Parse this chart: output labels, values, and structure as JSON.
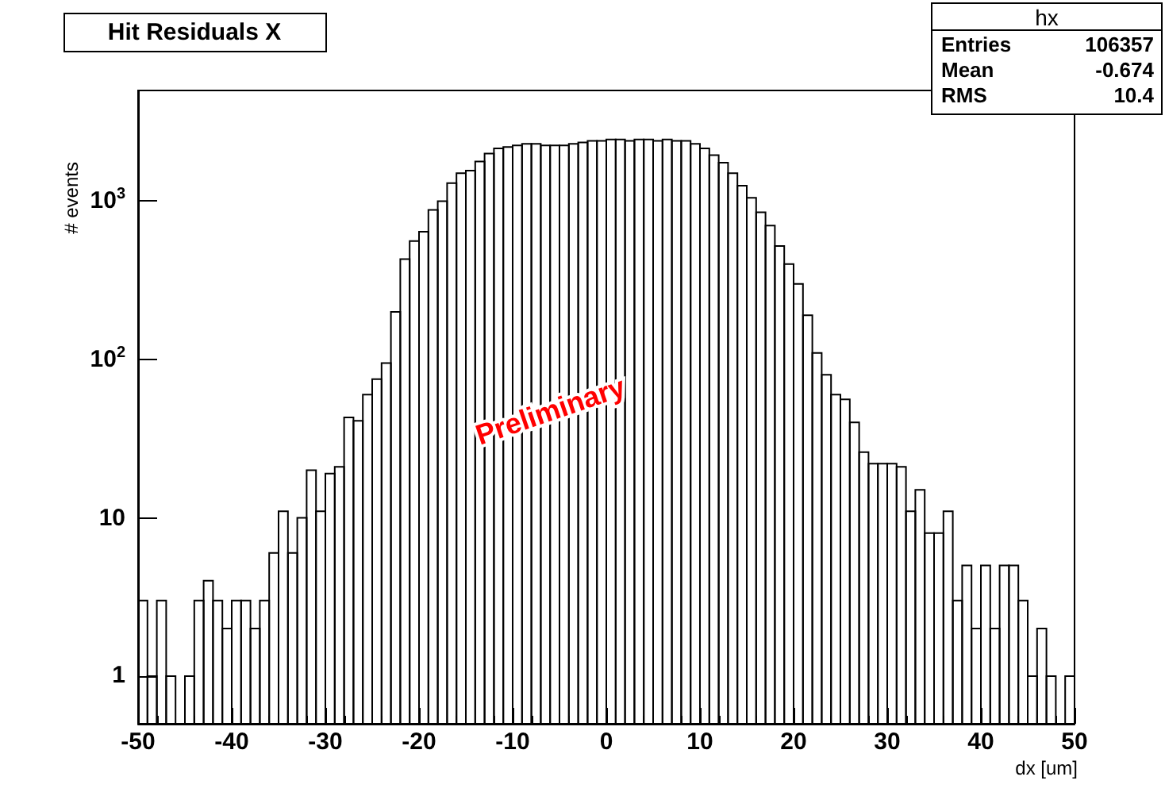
{
  "chart_data": {
    "type": "histogram",
    "title": "Hit Residuals X",
    "xlabel": "dx [um]",
    "ylabel": "# events",
    "annotations": [
      "Preliminary",
      "hx",
      "Entries 106357",
      "Mean -0.674",
      "RMS 10.4"
    ],
    "bins": [
      -50,
      -49,
      -48,
      -47,
      -46,
      -45,
      -44,
      -43,
      -42,
      -41,
      -40,
      -39,
      -38,
      -37,
      -36,
      -35,
      -34,
      -33,
      -32,
      -31,
      -30,
      -29,
      -28,
      -27,
      -26,
      -25,
      -24,
      -23,
      -22,
      -21,
      -20,
      -19,
      -18,
      -17,
      -16,
      -15,
      -14,
      -13,
      -12,
      -11,
      -10,
      -9,
      -8,
      -7,
      -6,
      -5,
      -4,
      -3,
      -2,
      -1,
      0,
      1,
      2,
      3,
      4,
      5,
      6,
      7,
      8,
      9,
      10,
      11,
      12,
      13,
      14,
      15,
      16,
      17,
      18,
      19,
      20,
      21,
      22,
      23,
      24,
      25,
      26,
      27,
      28,
      29,
      30,
      31,
      32,
      33,
      34,
      35,
      36,
      37,
      38,
      39,
      40,
      41,
      42,
      43,
      44,
      45,
      46,
      47,
      48,
      49,
      50
    ],
    "values": [
      3,
      1,
      3,
      1,
      null,
      1,
      3,
      4,
      3,
      2,
      3,
      3,
      2,
      3,
      6,
      11,
      6,
      10,
      20,
      11,
      19,
      21,
      43,
      41,
      60,
      75,
      95,
      200,
      430,
      560,
      640,
      880,
      1000,
      1300,
      1500,
      1560,
      1780,
      2000,
      2150,
      2200,
      2250,
      2300,
      2300,
      2250,
      2250,
      2250,
      2300,
      2350,
      2400,
      2400,
      2450,
      2450,
      2400,
      2450,
      2450,
      2400,
      2450,
      2400,
      2400,
      2300,
      2150,
      1950,
      1750,
      1500,
      1250,
      1050,
      850,
      700,
      520,
      400,
      300,
      190,
      110,
      80,
      60,
      56,
      40,
      26,
      22,
      22,
      22,
      21,
      11,
      15,
      8,
      8,
      11,
      3,
      5,
      2,
      5,
      2,
      5,
      5,
      3,
      1,
      2,
      1,
      null,
      1
    ],
    "color": "#000000",
    "xlim": [
      -50,
      50
    ],
    "xticks": [
      -50,
      -40,
      -30,
      -20,
      -10,
      0,
      10,
      20,
      30,
      40,
      50
    ],
    "ylim": [
      0.5,
      5000
    ],
    "log": "y",
    "yticks": [
      1,
      10,
      {
        "value": 100,
        "label": "10$^{2}$"
      },
      {
        "value": 1000,
        "label": "10$^{3}$"
      }
    ],
    "grid": false
  }
}
